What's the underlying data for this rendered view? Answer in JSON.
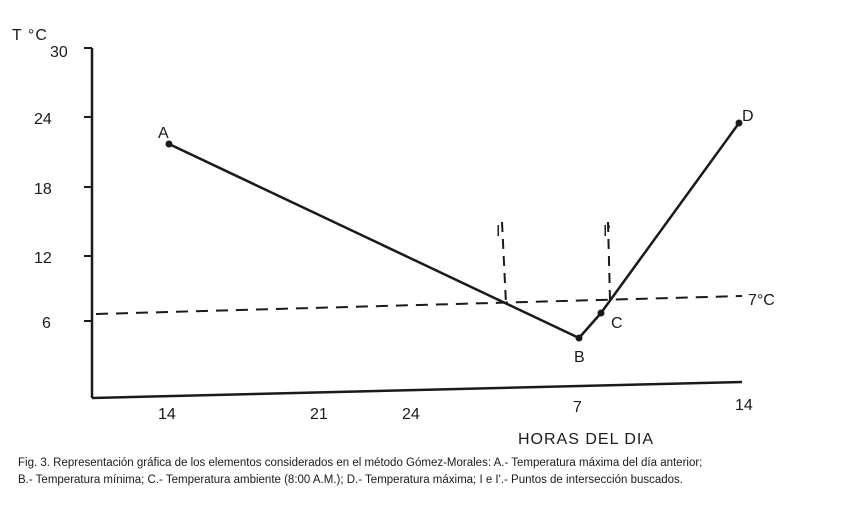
{
  "chart_data": {
    "type": "line",
    "ylabel": "T °C",
    "xlabel": "HORAS DEL DIA",
    "ylim": [
      0,
      30
    ],
    "yticks": [
      "6",
      "12",
      "18",
      "24",
      "30"
    ],
    "xticks": [
      "14",
      "21",
      "24",
      "7",
      "14"
    ],
    "series": [
      {
        "points": [
          {
            "label": "A",
            "x": 14,
            "y": 21.5
          },
          {
            "label": "B",
            "x": 31,
            "y": 5
          }
        ]
      },
      {
        "points": [
          {
            "label": "B",
            "x": 31,
            "y": 5
          },
          {
            "label": "C",
            "x": 32,
            "y": 7
          },
          {
            "label": "D",
            "x": 38,
            "y": 23
          }
        ]
      }
    ],
    "reference_line": {
      "label": "7°C",
      "y": 7
    },
    "intersections": [
      {
        "label": "I",
        "x": 28.5,
        "y": 7.6
      },
      {
        "label": "I'",
        "x": 32.7,
        "y": 8.8
      }
    ]
  },
  "caption": {
    "line1": "Fig. 3. Representación gráfica de los elementos considerados en el método Gómez-Morales: A.- Temperatura máxima del día anterior;",
    "line2": "B.- Temperatura mínima; C.- Temperatura ambiente (8:00 A.M.); D.- Temperatura máxima; I e I'.- Puntos de intersección buscados."
  }
}
